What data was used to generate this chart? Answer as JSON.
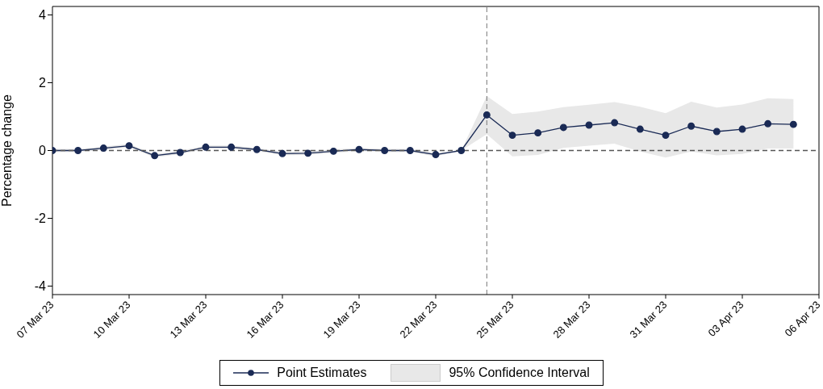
{
  "chart_data": {
    "type": "line",
    "ylabel": "Percentage change",
    "x": [
      "--03-07",
      "--03-08",
      "--03-09",
      "--03-10",
      "--03-11",
      "--03-12",
      "--03-13",
      "--03-14",
      "--03-15",
      "--03-16",
      "--03-17",
      "--03-18",
      "--03-19",
      "--03-20",
      "--03-21",
      "--03-22",
      "--03-23",
      "--03-24",
      "--03-25",
      "--03-26",
      "--03-27",
      "--03-28",
      "--03-29",
      "--03-30",
      "--03-31",
      "--04-01",
      "--04-02",
      "--04-03",
      "--04-04",
      "--04-05"
    ],
    "series": [
      {
        "type": "area",
        "name": "95% Confidence Interval",
        "color": "#e8e8e8",
        "values": [
          null,
          null,
          null,
          null,
          null,
          null,
          null,
          null,
          null,
          null,
          null,
          null,
          null,
          null,
          null,
          null,
          null,
          null,
          null,
          null,
          null,
          null,
          null,
          null,
          null,
          null,
          null,
          null,
          null,
          null
        ],
        "lower": [
          -0.05,
          -0.05,
          0.02,
          0.09,
          -0.2,
          -0.11,
          0.05,
          0.05,
          -0.02,
          -0.14,
          -0.13,
          -0.07,
          -0.02,
          -0.05,
          -0.05,
          -0.17,
          0,
          0.48,
          -0.17,
          -0.13,
          0.08,
          0.14,
          0.2,
          -0.03,
          -0.21,
          -0.03,
          -0.14,
          -0.1,
          0.06,
          0.06
        ],
        "upper": [
          0.05,
          0.05,
          0.12,
          0.19,
          -0.1,
          -0.01,
          0.15,
          0.15,
          0.08,
          -0.04,
          -0.03,
          0.03,
          0.08,
          0.05,
          0.05,
          -0.07,
          0,
          1.61,
          1.08,
          1.15,
          1.28,
          1.35,
          1.43,
          1.29,
          1.1,
          1.44,
          1.27,
          1.36,
          1.54,
          1.52
        ]
      },
      {
        "name": "Point Estimates",
        "color": "#1a2a55",
        "values": [
          0,
          0,
          0.07,
          0.14,
          -0.15,
          -0.06,
          0.1,
          0.1,
          0.03,
          -0.09,
          -0.08,
          -0.02,
          0.03,
          0,
          0,
          -0.12,
          0,
          1.05,
          0.45,
          0.52,
          0.68,
          0.75,
          0.82,
          0.63,
          0.45,
          0.72,
          0.56,
          0.63,
          0.79,
          0.77
        ]
      }
    ],
    "xlim": [
      "--03-07",
      "--04-06"
    ],
    "xticks": [
      {
        "value": "--03-07",
        "label": "07 Mar 23"
      },
      {
        "value": "--03-10",
        "label": "10 Mar 23"
      },
      {
        "value": "--03-13",
        "label": "13 Mar 23"
      },
      {
        "value": "--03-16",
        "label": "16 Mar 23"
      },
      {
        "value": "--03-19",
        "label": "19 Mar 23"
      },
      {
        "value": "--03-22",
        "label": "22 Mar 23"
      },
      {
        "value": "--03-25",
        "label": "25 Mar 23"
      },
      {
        "value": "--03-28",
        "label": "28 Mar 23"
      },
      {
        "value": "--03-31",
        "label": "31 Mar 23"
      },
      {
        "value": "--04-03",
        "label": "03 Apr 23"
      },
      {
        "value": "--04-06",
        "label": "06 Apr 23"
      }
    ],
    "ylim": [
      -4.25,
      4.25
    ],
    "yticks": [
      -4,
      -2,
      0,
      2,
      4
    ],
    "ref_lines": [
      {
        "axis": "y",
        "value": 0,
        "color": "#555555",
        "line_style": "dashed"
      },
      {
        "axis": "x",
        "value": "--03-24",
        "color": "#777777",
        "line_style": "dashed"
      }
    ],
    "grid": false,
    "legend": "bottom",
    "marker": "circle",
    "line_style": "solid"
  }
}
